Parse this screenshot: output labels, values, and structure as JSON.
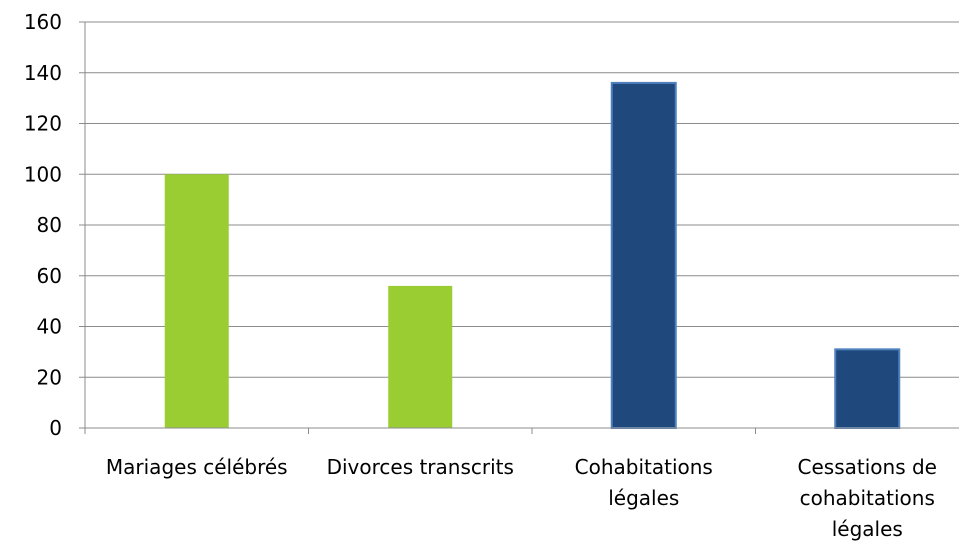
{
  "chart_data": {
    "type": "bar",
    "title": "",
    "xlabel": "",
    "ylabel": "",
    "categories": [
      [
        "Mariages célébrés"
      ],
      [
        "Divorces transcrits"
      ],
      [
        "Cohabitations",
        "légales"
      ],
      [
        "Cessations de",
        "cohabitations",
        "légales"
      ]
    ],
    "values": [
      100,
      56,
      136,
      31
    ],
    "bar_colors": [
      "#9ACD32",
      "#9ACD32",
      "#1F497D",
      "#1F497D"
    ],
    "ylim": [
      0,
      160
    ],
    "yticks": [
      0,
      20,
      40,
      60,
      80,
      100,
      120,
      140,
      160
    ],
    "grid": true,
    "legend": "none",
    "colors": {
      "gridline": "#8C8C8C",
      "axis": "#8C8C8C",
      "bar_outline_dark": "#4F81BD"
    }
  }
}
